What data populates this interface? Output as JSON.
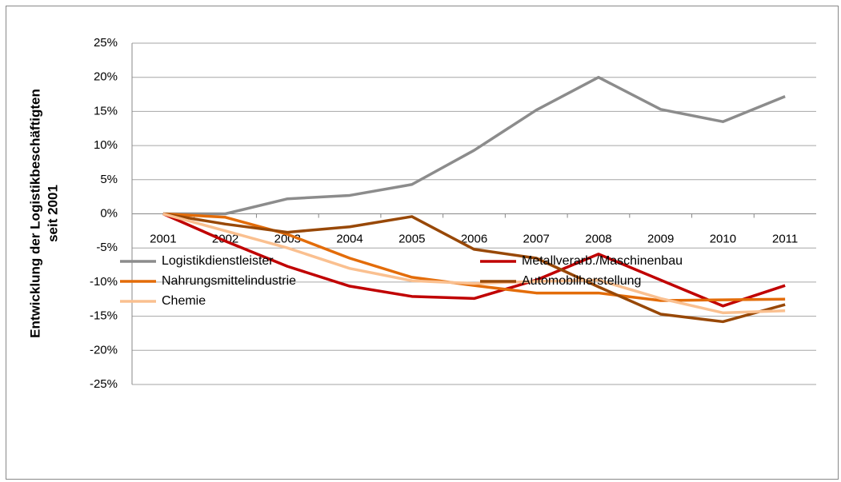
{
  "chart_data": {
    "type": "line",
    "ylabel": [
      "Entwicklung der Logistikbeschäftigten",
      "seit 2001"
    ],
    "categories": [
      "2001",
      "2002",
      "2003",
      "2004",
      "2005",
      "2006",
      "2007",
      "2008",
      "2009",
      "2010",
      "2011"
    ],
    "series": [
      {
        "name": "Logistikdienstleister",
        "color": "#8c8c8c",
        "values": [
          0,
          0,
          2.2,
          2.7,
          4.3,
          9.3,
          15.2,
          20,
          15.3,
          13.5,
          17.2
        ]
      },
      {
        "name": "Metallverarb./Maschinenbau",
        "color": "#c00000",
        "values": [
          0,
          -4,
          -7.7,
          -10.6,
          -12.1,
          -12.4,
          -9.7,
          -5.9,
          -9.7,
          -13.5,
          -10.5
        ]
      },
      {
        "name": "Nahrungsmittelindustrie",
        "color": "#e36c09",
        "values": [
          0,
          -0.5,
          -3,
          -6.5,
          -9.3,
          -10.5,
          -11.6,
          -11.6,
          -12.7,
          -12.6,
          -12.5
        ]
      },
      {
        "name": "Automobilherstellung",
        "color": "#984807",
        "values": [
          0,
          -1.5,
          -2.7,
          -1.9,
          -0.4,
          -5.2,
          -6.5,
          -10.7,
          -14.7,
          -15.8,
          -13.3
        ]
      },
      {
        "name": "Chemie",
        "color": "#fac090",
        "values": [
          0,
          -2.5,
          -5,
          -8,
          -9.8,
          -10.2,
          -9.9,
          -9.7,
          -12.4,
          -14.5,
          -14.2
        ]
      }
    ],
    "ylim": [
      -25,
      25
    ],
    "yticks": [
      {
        "value": 25,
        "label": "25%"
      },
      {
        "value": 20,
        "label": "20%"
      },
      {
        "value": 15,
        "label": "15%"
      },
      {
        "value": 10,
        "label": "10%"
      },
      {
        "value": 5,
        "label": "5%"
      },
      {
        "value": 0,
        "label": "0%"
      },
      {
        "value": -5,
        "label": "-5%"
      },
      {
        "value": -10,
        "label": "-10%"
      },
      {
        "value": -15,
        "label": "-15%"
      },
      {
        "value": -20,
        "label": "-20%"
      },
      {
        "value": -25,
        "label": "-25%"
      }
    ],
    "grid": true
  }
}
